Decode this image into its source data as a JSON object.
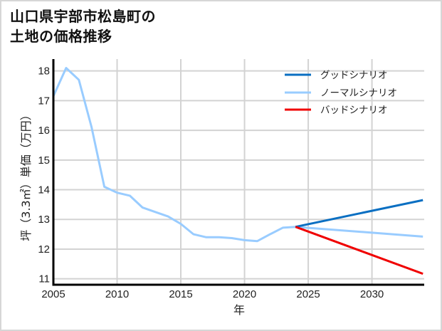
{
  "title": {
    "line1": "山口県宇部市松島町の",
    "line2": "土地の価格推移"
  },
  "colors": {
    "good": "#0a6fc2",
    "normal": "#99ccff",
    "bad": "#f00000",
    "grid": "#d3d3d3",
    "axis": "#000000",
    "frame": "#d6d6d6"
  },
  "chart_data": {
    "type": "line",
    "title": "山口県宇部市松島町の土地の価格推移",
    "xlabel": "年",
    "ylabel": "坪（3.3㎡）単価（万円）",
    "xlim": [
      2005,
      2034
    ],
    "ylim": [
      10.8,
      18.4
    ],
    "xticks": [
      2005,
      2010,
      2015,
      2020,
      2025,
      2030
    ],
    "yticks": [
      11,
      12,
      13,
      14,
      15,
      16,
      17,
      18
    ],
    "grid": true,
    "legend_position": "upper right",
    "series": [
      {
        "name": "グッドシナリオ",
        "color": "#0a6fc2",
        "x": [
          2024,
          2034
        ],
        "y": [
          12.75,
          13.65
        ]
      },
      {
        "name": "ノーマルシナリオ",
        "color": "#99ccff",
        "x": [
          2005,
          2006,
          2007,
          2008,
          2009,
          2010,
          2011,
          2012,
          2013,
          2014,
          2015,
          2016,
          2017,
          2018,
          2019,
          2020,
          2021,
          2022,
          2023,
          2024,
          2034
        ],
        "y": [
          17.15,
          18.1,
          17.7,
          16.1,
          14.1,
          13.9,
          13.8,
          13.4,
          13.25,
          13.1,
          12.85,
          12.5,
          12.4,
          12.4,
          12.37,
          12.3,
          12.27,
          12.5,
          12.72,
          12.75,
          12.42
        ]
      },
      {
        "name": "バッドシナリオ",
        "color": "#f00000",
        "x": [
          2024,
          2034
        ],
        "y": [
          12.75,
          11.17
        ]
      }
    ]
  }
}
